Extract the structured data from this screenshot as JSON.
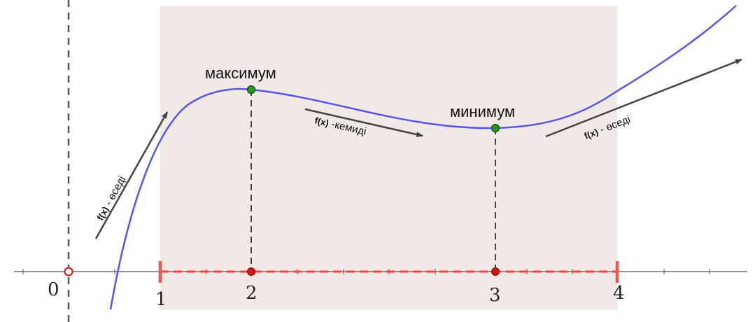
{
  "x_ticks": [
    {
      "value": 0,
      "label": "0"
    },
    {
      "value": 1,
      "label": "1"
    },
    {
      "value": 2,
      "label": "2"
    },
    {
      "value": 3,
      "label": "3"
    },
    {
      "value": 4,
      "label": "4"
    }
  ],
  "extrema": {
    "maximum": {
      "label": "максимум",
      "x": 2
    },
    "minimum": {
      "label": "минимум",
      "x": 3
    }
  },
  "arrow_labels": {
    "increasing_left": {
      "fx": "f(x)",
      "text": " - өседі"
    },
    "decreasing": {
      "fx": "f(x)",
      "text": " -кемиді"
    },
    "increasing_right": {
      "fx": "f(x)",
      "text": " - өседі"
    }
  },
  "interval": {
    "start": 1,
    "end": 4
  },
  "asymptote_x": 0,
  "colors": {
    "curve": "#5555ee",
    "region": "#f1e9e6",
    "interval": "#ee4444",
    "extremum_point": "#229922",
    "axis_point": "#dd1111",
    "arrow": "#444444"
  }
}
